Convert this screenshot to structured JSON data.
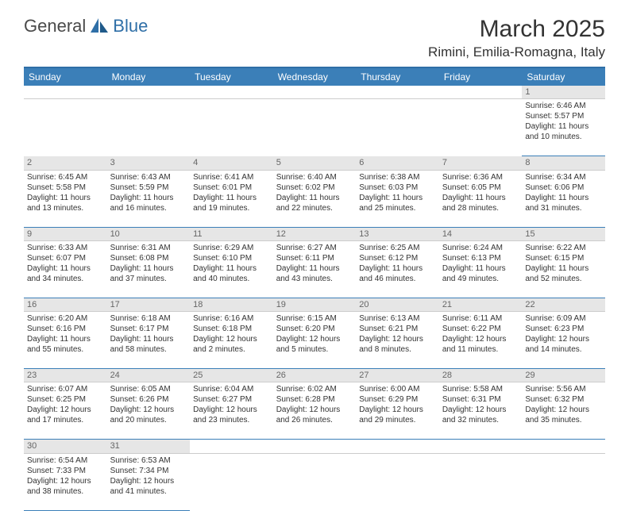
{
  "logo": {
    "text1": "General",
    "text2": "Blue"
  },
  "title": "March 2025",
  "location": "Rimini, Emilia-Romagna, Italy",
  "colors": {
    "header_bg": "#3b7fb8",
    "header_border": "#2f6fa7",
    "daynum_bg": "#e6e6e6",
    "daynum_text": "#666666",
    "cell_border": "#3b7fb8",
    "text": "#333333"
  },
  "weekdays": [
    "Sunday",
    "Monday",
    "Tuesday",
    "Wednesday",
    "Thursday",
    "Friday",
    "Saturday"
  ],
  "weeks": [
    [
      null,
      null,
      null,
      null,
      null,
      null,
      {
        "n": "1",
        "sr": "Sunrise: 6:46 AM",
        "ss": "Sunset: 5:57 PM",
        "d1": "Daylight: 11 hours",
        "d2": "and 10 minutes."
      }
    ],
    [
      {
        "n": "2",
        "sr": "Sunrise: 6:45 AM",
        "ss": "Sunset: 5:58 PM",
        "d1": "Daylight: 11 hours",
        "d2": "and 13 minutes."
      },
      {
        "n": "3",
        "sr": "Sunrise: 6:43 AM",
        "ss": "Sunset: 5:59 PM",
        "d1": "Daylight: 11 hours",
        "d2": "and 16 minutes."
      },
      {
        "n": "4",
        "sr": "Sunrise: 6:41 AM",
        "ss": "Sunset: 6:01 PM",
        "d1": "Daylight: 11 hours",
        "d2": "and 19 minutes."
      },
      {
        "n": "5",
        "sr": "Sunrise: 6:40 AM",
        "ss": "Sunset: 6:02 PM",
        "d1": "Daylight: 11 hours",
        "d2": "and 22 minutes."
      },
      {
        "n": "6",
        "sr": "Sunrise: 6:38 AM",
        "ss": "Sunset: 6:03 PM",
        "d1": "Daylight: 11 hours",
        "d2": "and 25 minutes."
      },
      {
        "n": "7",
        "sr": "Sunrise: 6:36 AM",
        "ss": "Sunset: 6:05 PM",
        "d1": "Daylight: 11 hours",
        "d2": "and 28 minutes."
      },
      {
        "n": "8",
        "sr": "Sunrise: 6:34 AM",
        "ss": "Sunset: 6:06 PM",
        "d1": "Daylight: 11 hours",
        "d2": "and 31 minutes."
      }
    ],
    [
      {
        "n": "9",
        "sr": "Sunrise: 6:33 AM",
        "ss": "Sunset: 6:07 PM",
        "d1": "Daylight: 11 hours",
        "d2": "and 34 minutes."
      },
      {
        "n": "10",
        "sr": "Sunrise: 6:31 AM",
        "ss": "Sunset: 6:08 PM",
        "d1": "Daylight: 11 hours",
        "d2": "and 37 minutes."
      },
      {
        "n": "11",
        "sr": "Sunrise: 6:29 AM",
        "ss": "Sunset: 6:10 PM",
        "d1": "Daylight: 11 hours",
        "d2": "and 40 minutes."
      },
      {
        "n": "12",
        "sr": "Sunrise: 6:27 AM",
        "ss": "Sunset: 6:11 PM",
        "d1": "Daylight: 11 hours",
        "d2": "and 43 minutes."
      },
      {
        "n": "13",
        "sr": "Sunrise: 6:25 AM",
        "ss": "Sunset: 6:12 PM",
        "d1": "Daylight: 11 hours",
        "d2": "and 46 minutes."
      },
      {
        "n": "14",
        "sr": "Sunrise: 6:24 AM",
        "ss": "Sunset: 6:13 PM",
        "d1": "Daylight: 11 hours",
        "d2": "and 49 minutes."
      },
      {
        "n": "15",
        "sr": "Sunrise: 6:22 AM",
        "ss": "Sunset: 6:15 PM",
        "d1": "Daylight: 11 hours",
        "d2": "and 52 minutes."
      }
    ],
    [
      {
        "n": "16",
        "sr": "Sunrise: 6:20 AM",
        "ss": "Sunset: 6:16 PM",
        "d1": "Daylight: 11 hours",
        "d2": "and 55 minutes."
      },
      {
        "n": "17",
        "sr": "Sunrise: 6:18 AM",
        "ss": "Sunset: 6:17 PM",
        "d1": "Daylight: 11 hours",
        "d2": "and 58 minutes."
      },
      {
        "n": "18",
        "sr": "Sunrise: 6:16 AM",
        "ss": "Sunset: 6:18 PM",
        "d1": "Daylight: 12 hours",
        "d2": "and 2 minutes."
      },
      {
        "n": "19",
        "sr": "Sunrise: 6:15 AM",
        "ss": "Sunset: 6:20 PM",
        "d1": "Daylight: 12 hours",
        "d2": "and 5 minutes."
      },
      {
        "n": "20",
        "sr": "Sunrise: 6:13 AM",
        "ss": "Sunset: 6:21 PM",
        "d1": "Daylight: 12 hours",
        "d2": "and 8 minutes."
      },
      {
        "n": "21",
        "sr": "Sunrise: 6:11 AM",
        "ss": "Sunset: 6:22 PM",
        "d1": "Daylight: 12 hours",
        "d2": "and 11 minutes."
      },
      {
        "n": "22",
        "sr": "Sunrise: 6:09 AM",
        "ss": "Sunset: 6:23 PM",
        "d1": "Daylight: 12 hours",
        "d2": "and 14 minutes."
      }
    ],
    [
      {
        "n": "23",
        "sr": "Sunrise: 6:07 AM",
        "ss": "Sunset: 6:25 PM",
        "d1": "Daylight: 12 hours",
        "d2": "and 17 minutes."
      },
      {
        "n": "24",
        "sr": "Sunrise: 6:05 AM",
        "ss": "Sunset: 6:26 PM",
        "d1": "Daylight: 12 hours",
        "d2": "and 20 minutes."
      },
      {
        "n": "25",
        "sr": "Sunrise: 6:04 AM",
        "ss": "Sunset: 6:27 PM",
        "d1": "Daylight: 12 hours",
        "d2": "and 23 minutes."
      },
      {
        "n": "26",
        "sr": "Sunrise: 6:02 AM",
        "ss": "Sunset: 6:28 PM",
        "d1": "Daylight: 12 hours",
        "d2": "and 26 minutes."
      },
      {
        "n": "27",
        "sr": "Sunrise: 6:00 AM",
        "ss": "Sunset: 6:29 PM",
        "d1": "Daylight: 12 hours",
        "d2": "and 29 minutes."
      },
      {
        "n": "28",
        "sr": "Sunrise: 5:58 AM",
        "ss": "Sunset: 6:31 PM",
        "d1": "Daylight: 12 hours",
        "d2": "and 32 minutes."
      },
      {
        "n": "29",
        "sr": "Sunrise: 5:56 AM",
        "ss": "Sunset: 6:32 PM",
        "d1": "Daylight: 12 hours",
        "d2": "and 35 minutes."
      }
    ],
    [
      {
        "n": "30",
        "sr": "Sunrise: 6:54 AM",
        "ss": "Sunset: 7:33 PM",
        "d1": "Daylight: 12 hours",
        "d2": "and 38 minutes."
      },
      {
        "n": "31",
        "sr": "Sunrise: 6:53 AM",
        "ss": "Sunset: 7:34 PM",
        "d1": "Daylight: 12 hours",
        "d2": "and 41 minutes."
      },
      null,
      null,
      null,
      null,
      null
    ]
  ]
}
